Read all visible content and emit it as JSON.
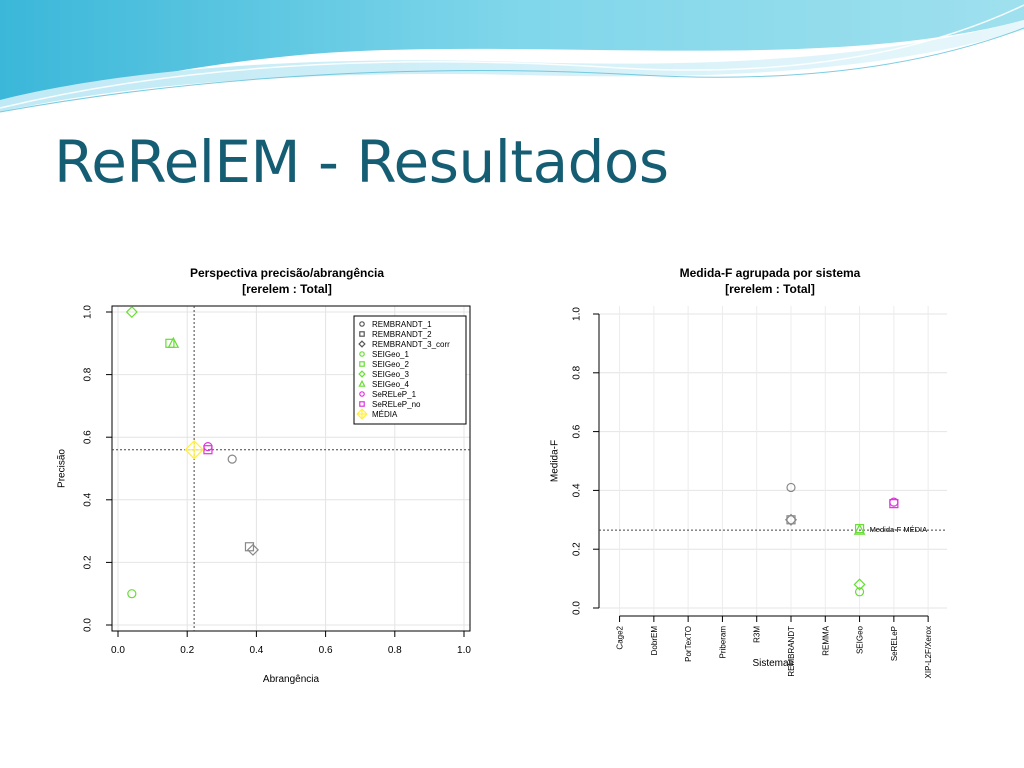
{
  "slide": {
    "title": "ReRelEM - Resultados"
  },
  "chart_data": [
    {
      "type": "scatter",
      "title": "Perspectiva precisão/abrangência",
      "subtitle": "[rerelem : Total]",
      "xlabel": "Abrangência",
      "ylabel": "Precisão",
      "xlim": [
        0,
        1
      ],
      "ylim": [
        0,
        1
      ],
      "xticks": [
        "0.0",
        "0.2",
        "0.4",
        "0.6",
        "0.8",
        "1.0"
      ],
      "yticks": [
        "0.0",
        "0.2",
        "0.4",
        "0.6",
        "0.8",
        "1.0"
      ],
      "grid": true,
      "legend_position": "top-right",
      "reference_lines": {
        "x": 0.22,
        "y": 0.56
      },
      "series": [
        {
          "name": "REMBRANDT_1",
          "marker": "circle",
          "color": "#888888",
          "points": [
            [
              0.33,
              0.53
            ]
          ]
        },
        {
          "name": "REMBRANDT_2",
          "marker": "square",
          "color": "#888888",
          "points": [
            [
              0.38,
              0.25
            ]
          ]
        },
        {
          "name": "REMBRANDT_3_corr",
          "marker": "diamond",
          "color": "#888888",
          "points": [
            [
              0.39,
              0.24
            ]
          ]
        },
        {
          "name": "SEIGeo_1",
          "marker": "circle",
          "color": "#66dd33",
          "points": [
            [
              0.04,
              0.1
            ]
          ]
        },
        {
          "name": "SEIGeo_2",
          "marker": "square",
          "color": "#66dd33",
          "points": [
            [
              0.15,
              0.9
            ]
          ]
        },
        {
          "name": "SEIGeo_3",
          "marker": "diamond",
          "color": "#66dd33",
          "points": [
            [
              0.04,
              1.0
            ]
          ]
        },
        {
          "name": "SEIGeo_4",
          "marker": "triangle",
          "color": "#66dd33",
          "points": [
            [
              0.16,
              0.9
            ]
          ]
        },
        {
          "name": "SeRELeP_1",
          "marker": "circle",
          "color": "#dd33dd",
          "points": [
            [
              0.26,
              0.57
            ]
          ]
        },
        {
          "name": "SeRELeP_no",
          "marker": "square",
          "color": "#dd33dd",
          "points": [
            [
              0.26,
              0.56
            ]
          ]
        },
        {
          "name": "MÉDIA",
          "marker": "star",
          "color": "#ffee44",
          "points": [
            [
              0.22,
              0.56
            ]
          ]
        }
      ]
    },
    {
      "type": "scatter",
      "title": "Medida-F agrupada por sistema",
      "subtitle": "[rerelem : Total]",
      "xlabel": "Sistemas",
      "ylabel": "Medida-F",
      "ylim": [
        0,
        1
      ],
      "yticks": [
        "0.0",
        "0.2",
        "0.4",
        "0.6",
        "0.8",
        "1.0"
      ],
      "grid": true,
      "categories": [
        "Cage2",
        "DobrEM",
        "PorTexTO",
        "Priberam",
        "R3M",
        "REMBRANDT",
        "REMMA",
        "SEIGeo",
        "SeRELeP",
        "XIP-L2F/Xerox"
      ],
      "reference_line": {
        "y": 0.265,
        "label": "Medida-F MÉDIA"
      },
      "points": [
        {
          "category": "REMBRANDT",
          "marker": "circle",
          "color": "#888888",
          "value": 0.41
        },
        {
          "category": "REMBRANDT",
          "marker": "square",
          "color": "#888888",
          "value": 0.3
        },
        {
          "category": "REMBRANDT",
          "marker": "diamond",
          "color": "#888888",
          "value": 0.3
        },
        {
          "category": "SEIGeo",
          "marker": "circle",
          "color": "#66dd33",
          "value": 0.055
        },
        {
          "category": "SEIGeo",
          "marker": "diamond",
          "color": "#66dd33",
          "value": 0.08
        },
        {
          "category": "SEIGeo",
          "marker": "square",
          "color": "#66dd33",
          "value": 0.27
        },
        {
          "category": "SEIGeo",
          "marker": "triangle",
          "color": "#66dd33",
          "value": 0.265
        },
        {
          "category": "SeRELeP",
          "marker": "circle",
          "color": "#dd33dd",
          "value": 0.36
        },
        {
          "category": "SeRELeP",
          "marker": "square",
          "color": "#dd33dd",
          "value": 0.355
        }
      ]
    }
  ]
}
